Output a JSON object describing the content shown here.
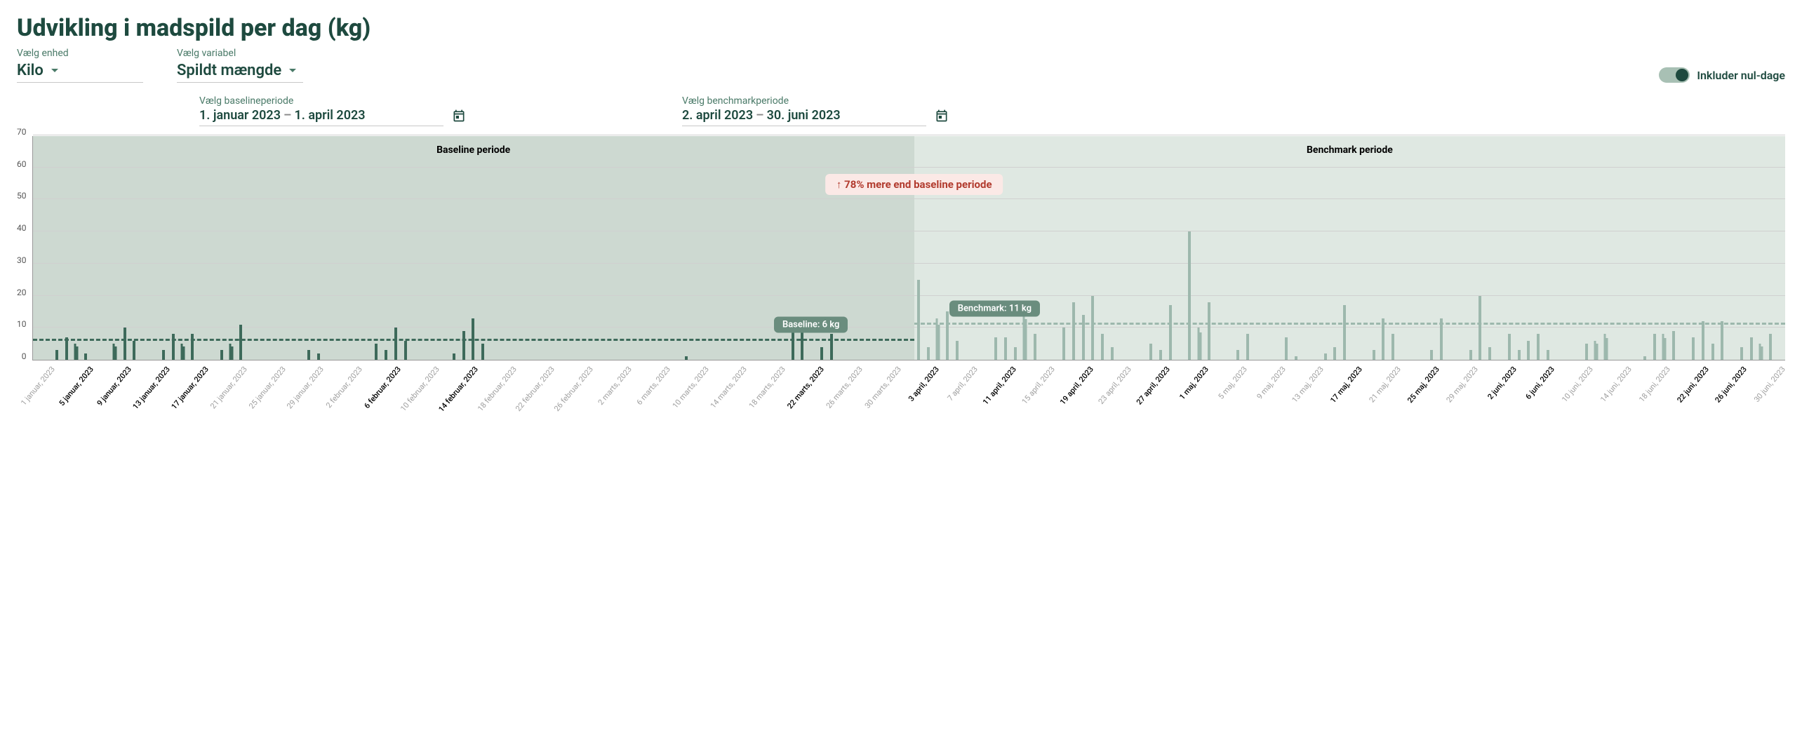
{
  "title": "Udvikling i madspild per dag (kg)",
  "controls": {
    "unit": {
      "label": "Vælg enhed",
      "value": "Kilo"
    },
    "variable": {
      "label": "Vælg variabel",
      "value": "Spildt mængde"
    }
  },
  "toggle": {
    "label": "Inkluder nul-dage",
    "on": true
  },
  "baselinePeriod": {
    "label": "Vælg baselineperiode",
    "from": "1. januar 2023",
    "to": "1. april 2023"
  },
  "benchmarkPeriod": {
    "label": "Vælg benchmarkperiode",
    "from": "2. april 2023",
    "to": "30. juni 2023"
  },
  "chart": {
    "type": "bar",
    "ylim": [
      0,
      70
    ],
    "ytick_step": 10,
    "yticks": [
      0,
      10,
      20,
      30,
      40,
      50,
      60,
      70
    ],
    "grid_color": "#d0d0d0",
    "background_color": "#ffffff",
    "baseline_bg_color": "#cdd9d1",
    "benchmark_bg_color": "#dfe8e2",
    "baseline_bar_color": "#3d6a5a",
    "benchmark_bar_color": "#9db8ad",
    "split_percent": 50.3,
    "periodTitles": {
      "baseline": "Baseline periode",
      "benchmark": "Benchmark periode"
    },
    "callout": {
      "text": "↑ 78% mere end baseline periode",
      "percent": 78
    },
    "averages": {
      "baseline": {
        "value": 6,
        "label": "Baseline: 6 kg",
        "color": "#3d6a5a"
      },
      "benchmark": {
        "value": 11,
        "label": "Benchmark: 11 kg",
        "color": "#9db8ad"
      }
    },
    "xTotalDays": 181,
    "baseline_values": [
      {
        "d": 3,
        "v": 3,
        "c": 1
      },
      {
        "d": 4,
        "v": 7,
        "c": 1
      },
      {
        "d": 5,
        "v": 5,
        "c": 2
      },
      {
        "d": 6,
        "v": 2,
        "c": 1
      },
      {
        "d": 9,
        "v": 5,
        "c": 2
      },
      {
        "d": 10,
        "v": 10,
        "c": 1
      },
      {
        "d": 11,
        "v": 6,
        "c": 1
      },
      {
        "d": 14,
        "v": 3,
        "c": 1
      },
      {
        "d": 15,
        "v": 8,
        "c": 1
      },
      {
        "d": 16,
        "v": 5,
        "c": 2
      },
      {
        "d": 17,
        "v": 8,
        "c": 1
      },
      {
        "d": 20,
        "v": 3,
        "c": 1
      },
      {
        "d": 21,
        "v": 5,
        "c": 2
      },
      {
        "d": 22,
        "v": 11,
        "c": 1
      },
      {
        "d": 29,
        "v": 3,
        "c": 1
      },
      {
        "d": 30,
        "v": 2,
        "c": 1
      },
      {
        "d": 36,
        "v": 5,
        "c": 1
      },
      {
        "d": 37,
        "v": 3,
        "c": 1
      },
      {
        "d": 38,
        "v": 10,
        "c": 1
      },
      {
        "d": 39,
        "v": 6,
        "c": 1
      },
      {
        "d": 44,
        "v": 2,
        "c": 1
      },
      {
        "d": 45,
        "v": 9,
        "c": 1
      },
      {
        "d": 46,
        "v": 13,
        "c": 1
      },
      {
        "d": 47,
        "v": 5,
        "c": 1
      },
      {
        "d": 68,
        "v": 1,
        "c": 1
      },
      {
        "d": 79,
        "v": 10,
        "c": 1
      },
      {
        "d": 80,
        "v": 13,
        "c": 1
      },
      {
        "d": 82,
        "v": 4,
        "c": 1
      },
      {
        "d": 83,
        "v": 8,
        "c": 1
      }
    ],
    "benchmark_values": [
      {
        "d": 92,
        "v": 25,
        "c": 1
      },
      {
        "d": 93,
        "v": 4,
        "c": 1
      },
      {
        "d": 94,
        "v": 13,
        "c": 2
      },
      {
        "d": 95,
        "v": 15,
        "c": 1
      },
      {
        "d": 96,
        "v": 6,
        "c": 1
      },
      {
        "d": 100,
        "v": 7,
        "c": 1
      },
      {
        "d": 101,
        "v": 7,
        "c": 1
      },
      {
        "d": 102,
        "v": 4,
        "c": 1
      },
      {
        "d": 103,
        "v": 15,
        "c": 2
      },
      {
        "d": 104,
        "v": 8,
        "c": 1
      },
      {
        "d": 107,
        "v": 10,
        "c": 1
      },
      {
        "d": 108,
        "v": 18,
        "c": 1
      },
      {
        "d": 109,
        "v": 14,
        "c": 1
      },
      {
        "d": 110,
        "v": 20,
        "c": 1
      },
      {
        "d": 111,
        "v": 8,
        "c": 1
      },
      {
        "d": 112,
        "v": 4,
        "c": 1
      },
      {
        "d": 116,
        "v": 5,
        "c": 1
      },
      {
        "d": 117,
        "v": 3,
        "c": 1
      },
      {
        "d": 118,
        "v": 17,
        "c": 1
      },
      {
        "d": 120,
        "v": 40,
        "c": 1
      },
      {
        "d": 121,
        "v": 10,
        "c": 2
      },
      {
        "d": 122,
        "v": 18,
        "c": 1
      },
      {
        "d": 125,
        "v": 3,
        "c": 1
      },
      {
        "d": 126,
        "v": 8,
        "c": 1
      },
      {
        "d": 130,
        "v": 7,
        "c": 1
      },
      {
        "d": 131,
        "v": 1,
        "c": 1
      },
      {
        "d": 134,
        "v": 2,
        "c": 1
      },
      {
        "d": 135,
        "v": 4,
        "c": 1
      },
      {
        "d": 136,
        "v": 17,
        "c": 1
      },
      {
        "d": 139,
        "v": 3,
        "c": 1
      },
      {
        "d": 140,
        "v": 13,
        "c": 1
      },
      {
        "d": 141,
        "v": 8,
        "c": 1
      },
      {
        "d": 145,
        "v": 3,
        "c": 1
      },
      {
        "d": 146,
        "v": 13,
        "c": 1
      },
      {
        "d": 149,
        "v": 3,
        "c": 1
      },
      {
        "d": 150,
        "v": 20,
        "c": 1
      },
      {
        "d": 151,
        "v": 4,
        "c": 1
      },
      {
        "d": 153,
        "v": 8,
        "c": 1
      },
      {
        "d": 154,
        "v": 3,
        "c": 1
      },
      {
        "d": 155,
        "v": 6,
        "c": 1
      },
      {
        "d": 156,
        "v": 8,
        "c": 1
      },
      {
        "d": 157,
        "v": 3,
        "c": 1
      },
      {
        "d": 161,
        "v": 5,
        "c": 1
      },
      {
        "d": 162,
        "v": 6,
        "c": 2
      },
      {
        "d": 163,
        "v": 8,
        "c": 2
      },
      {
        "d": 167,
        "v": 1,
        "c": 1
      },
      {
        "d": 168,
        "v": 8,
        "c": 1
      },
      {
        "d": 169,
        "v": 8,
        "c": 2
      },
      {
        "d": 170,
        "v": 9,
        "c": 1
      },
      {
        "d": 172,
        "v": 7,
        "c": 1
      },
      {
        "d": 173,
        "v": 12,
        "c": 1
      },
      {
        "d": 174,
        "v": 5,
        "c": 1
      },
      {
        "d": 175,
        "v": 12,
        "c": 1
      },
      {
        "d": 177,
        "v": 4,
        "c": 1
      },
      {
        "d": 178,
        "v": 7,
        "c": 1
      },
      {
        "d": 179,
        "v": 5,
        "c": 2
      },
      {
        "d": 180,
        "v": 8,
        "c": 1
      }
    ],
    "x_ticks": [
      {
        "d": 1,
        "label": "1 januar, 2023",
        "strong": false
      },
      {
        "d": 5,
        "label": "5 januar, 2023",
        "strong": true
      },
      {
        "d": 9,
        "label": "9 januar, 2023",
        "strong": true
      },
      {
        "d": 13,
        "label": "13 januar, 2023",
        "strong": true
      },
      {
        "d": 17,
        "label": "17 januar, 2023",
        "strong": true
      },
      {
        "d": 21,
        "label": "21 januar, 2023",
        "strong": false
      },
      {
        "d": 25,
        "label": "25 januar, 2023",
        "strong": false
      },
      {
        "d": 29,
        "label": "29 januar, 2023",
        "strong": false
      },
      {
        "d": 33,
        "label": "2 februar, 2023",
        "strong": false
      },
      {
        "d": 37,
        "label": "6 februar, 2023",
        "strong": true
      },
      {
        "d": 41,
        "label": "10 februar, 2023",
        "strong": false
      },
      {
        "d": 45,
        "label": "14 februar, 2023",
        "strong": true
      },
      {
        "d": 49,
        "label": "18 februar, 2023",
        "strong": false
      },
      {
        "d": 53,
        "label": "22 februar, 2023",
        "strong": false
      },
      {
        "d": 57,
        "label": "26 februar, 2023",
        "strong": false
      },
      {
        "d": 61,
        "label": "2 marts, 2023",
        "strong": false
      },
      {
        "d": 65,
        "label": "6 marts, 2023",
        "strong": false
      },
      {
        "d": 69,
        "label": "10 marts, 2023",
        "strong": false
      },
      {
        "d": 73,
        "label": "14 marts, 2023",
        "strong": false
      },
      {
        "d": 77,
        "label": "18 marts, 2023",
        "strong": false
      },
      {
        "d": 81,
        "label": "22 marts, 2023",
        "strong": true
      },
      {
        "d": 85,
        "label": "26 marts, 2023",
        "strong": false
      },
      {
        "d": 89,
        "label": "30 marts, 2023",
        "strong": false
      },
      {
        "d": 93,
        "label": "3 april, 2023",
        "strong": true
      },
      {
        "d": 97,
        "label": "7 april, 2023",
        "strong": false
      },
      {
        "d": 101,
        "label": "11 april, 2023",
        "strong": true
      },
      {
        "d": 105,
        "label": "15 april, 2023",
        "strong": false
      },
      {
        "d": 109,
        "label": "19 april, 2023",
        "strong": true
      },
      {
        "d": 113,
        "label": "23 april, 2023",
        "strong": false
      },
      {
        "d": 117,
        "label": "27 april, 2023",
        "strong": true
      },
      {
        "d": 121,
        "label": "1 maj, 2023",
        "strong": true
      },
      {
        "d": 125,
        "label": "5 maj, 2023",
        "strong": false
      },
      {
        "d": 129,
        "label": "9 maj, 2023",
        "strong": false
      },
      {
        "d": 133,
        "label": "13 maj, 2023",
        "strong": false
      },
      {
        "d": 137,
        "label": "17 maj, 2023",
        "strong": true
      },
      {
        "d": 141,
        "label": "21 maj, 2023",
        "strong": false
      },
      {
        "d": 145,
        "label": "25 maj, 2023",
        "strong": true
      },
      {
        "d": 149,
        "label": "29 maj, 2023",
        "strong": false
      },
      {
        "d": 153,
        "label": "2 juni, 2023",
        "strong": true
      },
      {
        "d": 157,
        "label": "6 juni, 2023",
        "strong": true
      },
      {
        "d": 161,
        "label": "10 juni, 2023",
        "strong": false
      },
      {
        "d": 165,
        "label": "14 juni, 2023",
        "strong": false
      },
      {
        "d": 169,
        "label": "18 juni, 2023",
        "strong": false
      },
      {
        "d": 173,
        "label": "22 juni, 2023",
        "strong": true
      },
      {
        "d": 177,
        "label": "26 juni, 2023",
        "strong": true
      },
      {
        "d": 181,
        "label": "30 juni, 2023",
        "strong": false
      }
    ]
  }
}
